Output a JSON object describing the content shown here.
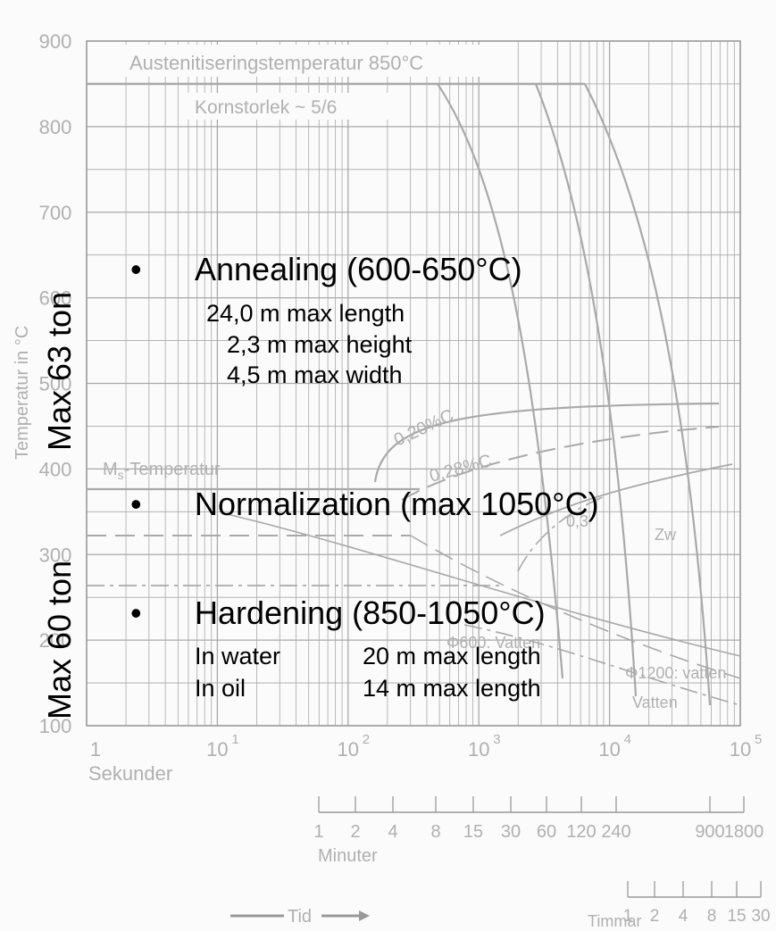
{
  "diagram": {
    "colors": {
      "line": "#a9a9a9",
      "text": "#b0b0b0",
      "overlay_text": "#000000",
      "background": "#fbfbfb"
    },
    "y_axis": {
      "label": "Temperatur in °C",
      "ticks": [
        "900",
        "800",
        "700",
        "600",
        "500",
        "400",
        "300",
        "200",
        "100"
      ],
      "y_values": [
        900,
        800,
        700,
        600,
        500,
        400,
        300,
        200,
        100
      ]
    },
    "x_axis": {
      "label": "Sekunder",
      "ticks": [
        {
          "label": "1",
          "exp": ""
        },
        {
          "label": "10",
          "exp": "1"
        },
        {
          "label": "10",
          "exp": "2"
        },
        {
          "label": "10",
          "exp": "3"
        },
        {
          "label": "10",
          "exp": "4"
        },
        {
          "label": "10",
          "exp": "5"
        }
      ]
    },
    "minutes_scale": {
      "label": "Minuter",
      "ticks": [
        "1",
        "2",
        "4",
        "8",
        "15",
        "30",
        "60",
        "120",
        "240",
        "900",
        "1800"
      ]
    },
    "hours_scale": {
      "label": "Timmar",
      "ticks": [
        "1",
        "2",
        "4",
        "8",
        "15",
        "30"
      ]
    },
    "time_label": "Tid",
    "annotations": {
      "austenitizing": "Austenitiseringstemperatur 850°C",
      "grain_size": "Kornstorlek ~ 5/6",
      "ms_temp_main": "M",
      "ms_temp_sub": "s",
      "ms_temp_rest": "-Temperatur",
      "c020": "0,20%C",
      "c028": "0,28%C",
      "c03": "0,3",
      "zw": "Zw",
      "phi600": "Φ600: Vatten",
      "phi1200": "Φ1200: vatten",
      "vatten": "Vatten"
    }
  },
  "overlay": {
    "side_label_top": "Max 63 ton",
    "side_label_bottom": "Max 60 ton",
    "bullet": "•",
    "annealing": {
      "title": "Annealing (600-650°C)",
      "lines": [
        "24,0 m max length",
        "2,3 m max height",
        "4,5 m max width"
      ]
    },
    "normalization": {
      "title": "Normalization  (max 1050°C)"
    },
    "hardening": {
      "title": "Hardening (850-1050°C)",
      "rows": [
        {
          "medium": "In water",
          "value": "20 m max length"
        },
        {
          "medium": "In oil",
          "value": "14 m max length"
        }
      ]
    }
  }
}
